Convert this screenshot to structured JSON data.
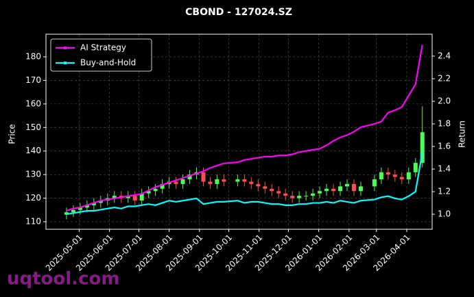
{
  "chart_data": {
    "type": "candlestick",
    "title": "CBOND - 127024.SZ",
    "ylabel": "Price",
    "y2label": "Return",
    "watermark": "uqtool.com",
    "x": [
      "2025-04-18",
      "2025-04-25",
      "2025-05-02",
      "2025-05-09",
      "2025-05-16",
      "2025-05-23",
      "2025-05-30",
      "2025-06-06",
      "2025-06-13",
      "2025-06-20",
      "2025-06-27",
      "2025-07-04",
      "2025-07-11",
      "2025-07-18",
      "2025-07-25",
      "2025-08-01",
      "2025-08-08",
      "2025-08-15",
      "2025-08-22",
      "2025-08-29",
      "2025-09-05",
      "2025-09-12",
      "2025-09-19",
      "2025-09-26",
      "2025-10-10",
      "2025-10-17",
      "2025-10-24",
      "2025-10-31",
      "2025-11-07",
      "2025-11-14",
      "2025-11-21",
      "2025-11-28",
      "2025-12-05",
      "2025-12-12",
      "2025-12-19",
      "2025-12-26",
      "2026-01-02",
      "2026-01-09",
      "2026-01-16",
      "2026-01-23",
      "2026-01-30",
      "2026-02-06",
      "2026-02-13",
      "2026-02-27",
      "2026-03-06",
      "2026-03-13",
      "2026-03-20",
      "2026-03-27",
      "2026-04-03",
      "2026-04-10",
      "2026-04-17"
    ],
    "open": [
      113,
      114,
      115,
      116,
      117,
      118,
      119,
      120,
      121,
      120,
      121,
      119,
      122,
      123,
      124,
      126,
      127,
      126,
      128,
      130,
      131,
      127,
      126,
      128,
      127,
      128,
      127,
      126,
      125,
      124,
      123,
      122,
      121,
      120,
      121,
      121,
      122,
      123,
      124,
      123,
      125,
      126,
      123,
      125,
      128,
      131,
      130,
      129,
      128,
      131,
      135
    ],
    "high": [
      116,
      117,
      118,
      119,
      120,
      121,
      122,
      123,
      123,
      123,
      123,
      124,
      125,
      126,
      128,
      129,
      129,
      130,
      132,
      133,
      133,
      129,
      130,
      130,
      130,
      130,
      129,
      128,
      127,
      126,
      125,
      124,
      123,
      123,
      123,
      124,
      125,
      126,
      126,
      127,
      128,
      128,
      127,
      130,
      133,
      133,
      132,
      131,
      133,
      137,
      159
    ],
    "low": [
      111,
      112,
      113,
      114,
      115,
      116,
      117,
      118,
      118,
      118,
      117,
      117,
      120,
      121,
      122,
      124,
      124,
      124,
      126,
      128,
      125,
      124,
      124,
      125,
      125,
      125,
      124,
      123,
      122,
      121,
      120,
      119,
      118,
      118,
      119,
      119,
      120,
      121,
      121,
      121,
      123,
      121,
      121,
      123,
      126,
      128,
      127,
      126,
      126,
      129,
      133
    ],
    "close": [
      114,
      115,
      116,
      117,
      118,
      119,
      120,
      121,
      120,
      121,
      119,
      122,
      123,
      124,
      126,
      127,
      126,
      128,
      130,
      131,
      127,
      126,
      128,
      127,
      128,
      127,
      126,
      125,
      124,
      123,
      122,
      121,
      120,
      121,
      121,
      122,
      123,
      124,
      123,
      125,
      126,
      123,
      125,
      128,
      131,
      130,
      129,
      128,
      131,
      135,
      148
    ],
    "up_color": "#4cff4c",
    "down_color": "#ff4c4c",
    "series": [
      {
        "name": "AI Strategy",
        "color": "#ff00ff",
        "axis": "y2",
        "values": [
          1.03,
          1.05,
          1.06,
          1.08,
          1.1,
          1.12,
          1.13,
          1.14,
          1.15,
          1.16,
          1.17,
          1.18,
          1.21,
          1.24,
          1.26,
          1.28,
          1.3,
          1.32,
          1.34,
          1.36,
          1.38,
          1.41,
          1.43,
          1.45,
          1.46,
          1.48,
          1.49,
          1.5,
          1.51,
          1.51,
          1.52,
          1.52,
          1.53,
          1.55,
          1.56,
          1.57,
          1.58,
          1.61,
          1.65,
          1.68,
          1.7,
          1.73,
          1.77,
          1.8,
          1.82,
          1.9,
          1.92,
          1.95,
          2.05,
          2.15,
          2.5
        ]
      },
      {
        "name": "Buy-and-Hold",
        "color": "#00ffff",
        "axis": "y2",
        "values": [
          1.0,
          1.01,
          1.02,
          1.03,
          1.03,
          1.04,
          1.05,
          1.06,
          1.05,
          1.07,
          1.07,
          1.08,
          1.09,
          1.08,
          1.1,
          1.12,
          1.11,
          1.12,
          1.13,
          1.14,
          1.09,
          1.1,
          1.11,
          1.11,
          1.12,
          1.1,
          1.11,
          1.11,
          1.1,
          1.09,
          1.09,
          1.08,
          1.08,
          1.09,
          1.09,
          1.1,
          1.1,
          1.11,
          1.1,
          1.12,
          1.11,
          1.1,
          1.12,
          1.13,
          1.15,
          1.16,
          1.14,
          1.13,
          1.16,
          1.2,
          1.55
        ]
      }
    ],
    "xlim": [
      "2025-03-28",
      "2026-04-27"
    ],
    "xticks": [
      "2025-05-01",
      "2025-06-01",
      "2025-07-01",
      "2025-08-01",
      "2025-09-01",
      "2025-10-01",
      "2025-11-01",
      "2025-12-01",
      "2026-01-01",
      "2026-02-01",
      "2026-03-01",
      "2026-04-01"
    ],
    "ylim": [
      106.8,
      189.6
    ],
    "yticks": [
      110,
      120,
      130,
      140,
      150,
      160,
      170,
      180
    ],
    "y2lim": [
      0.867,
      2.594
    ],
    "y2ticks": [
      {
        "value": 1,
        "label": "1.0"
      },
      1.2,
      1.4,
      1.6,
      1.8,
      {
        "value": 2,
        "label": "2.0"
      },
      2.2,
      2.4
    ],
    "grid": true,
    "legend": "upper left"
  }
}
